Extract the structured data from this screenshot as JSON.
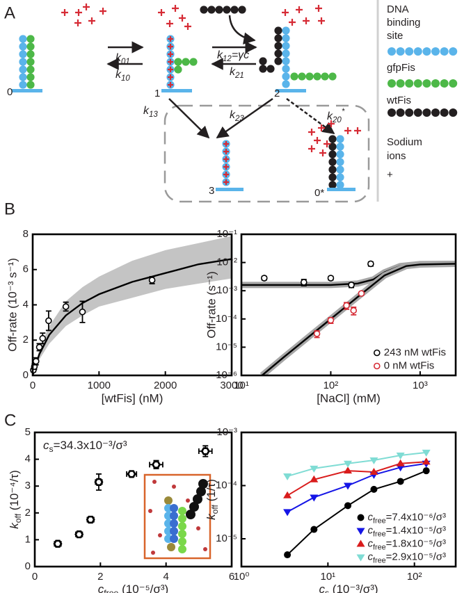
{
  "panel_labels": [
    "A",
    "B",
    "C"
  ],
  "diagram": {
    "states": [
      "0",
      "1",
      "2",
      "3",
      "0*"
    ],
    "rates": [
      {
        "symbol": "k",
        "subscript": "01"
      },
      {
        "symbol": "k",
        "subscript": "10"
      },
      {
        "symbol": "k",
        "subscript": "12",
        "text": "=γc"
      },
      {
        "symbol": "k",
        "subscript": "21"
      },
      {
        "symbol": "k",
        "subscript": "13"
      },
      {
        "symbol": "k",
        "subscript": "23"
      },
      {
        "symbol": "k",
        "subscript": "20",
        "superscript": "*"
      }
    ],
    "legend": [
      {
        "lines": [
          "DNA",
          "binding",
          "site"
        ],
        "color": "#5ab4ea"
      },
      {
        "lines": [
          "gfpFis"
        ],
        "color": "#4db848"
      },
      {
        "lines": [
          "wtFis"
        ],
        "color": "#231f20"
      },
      {
        "lines": [
          "Sodium",
          "ions"
        ],
        "color": "#d62b35",
        "symbol": "+"
      }
    ]
  },
  "chart_data": [
    {
      "type": "scatter",
      "xlabel": "[wtFis] (nM)",
      "ylabel": "Off-rate (10⁻³ s⁻¹)",
      "xlim": [
        0,
        3000
      ],
      "xticks": [
        0,
        1000,
        2000,
        3000
      ],
      "ylim": [
        0,
        8
      ],
      "yticks": [
        0,
        2,
        4,
        6,
        8
      ],
      "band": {
        "color": "#c4c4c4",
        "x": [
          0,
          100,
          250,
          500,
          750,
          1000,
          1500,
          2000,
          2500,
          3000
        ],
        "lower": [
          0,
          0.9,
          1.8,
          2.8,
          3.4,
          3.9,
          4.4,
          4.9,
          5.2,
          5.5
        ],
        "upper": [
          0,
          1.5,
          2.8,
          4.2,
          5.0,
          5.6,
          6.5,
          7.1,
          7.5,
          7.9
        ]
      },
      "fits": [
        {
          "color": "#000000",
          "x": [
            0,
            100,
            250,
            500,
            750,
            1000,
            1500,
            2000,
            2500,
            3000
          ],
          "values": [
            0,
            1.2,
            2.3,
            3.4,
            4.1,
            4.6,
            5.3,
            5.8,
            6.3,
            6.6
          ]
        }
      ],
      "series": [
        {
          "color": "#000000",
          "marker": "open-circle",
          "x": [
            10,
            25,
            50,
            100,
            150,
            240,
            500,
            750,
            1800
          ],
          "values": [
            0.3,
            0.5,
            0.8,
            1.6,
            2.1,
            3.1,
            3.9,
            3.6,
            5.4
          ],
          "errors": [
            0.1,
            0.15,
            0.2,
            0.2,
            0.3,
            0.55,
            0.25,
            0.6,
            0.2
          ]
        }
      ]
    },
    {
      "type": "scatter",
      "xlabel": "[NaCl] (mM)",
      "ylabel": "Off-rate (s⁻¹)",
      "xscale": "log",
      "yscale": "log",
      "xlim": [
        10,
        2500
      ],
      "xticks": [
        {
          "value": 10,
          "label": "10¹"
        },
        {
          "value": 100,
          "label": "10²"
        },
        {
          "value": 1000,
          "label": "10³"
        }
      ],
      "ylim": [
        1e-06,
        0.1
      ],
      "yticks": [
        {
          "value": 1e-06,
          "label": "10⁻⁶"
        },
        {
          "value": 1e-05,
          "label": "10⁻⁵"
        },
        {
          "value": 0.0001,
          "label": "10⁻⁴"
        },
        {
          "value": 0.001,
          "label": "10⁻³"
        },
        {
          "value": 0.01,
          "label": "10⁻²"
        },
        {
          "value": 0.1,
          "label": "10⁻¹"
        }
      ],
      "legend": "lower right",
      "fits": [
        {
          "color": "#000000",
          "halo_color": "#a6a6a6",
          "x": [
            10,
            100,
            200,
            300,
            400,
            600,
            1000,
            2500
          ],
          "values": [
            0.0016,
            0.0016,
            0.0018,
            0.0025,
            0.0045,
            0.0075,
            0.0088,
            0.009
          ]
        },
        {
          "color": "#000000",
          "halo_color": "#a6a6a6",
          "x": [
            17,
            30,
            60,
            100,
            200,
            400,
            700,
            1000,
            2500
          ],
          "values": [
            1e-06,
            4.5e-06,
            2.7e-05,
            0.0001,
            0.0006,
            0.0035,
            0.0075,
            0.0085,
            0.009
          ]
        }
      ],
      "series": [
        {
          "name": "243 nM wtFis",
          "color": "#000000",
          "marker": "open-circle",
          "x": [
            18,
            50,
            100,
            170,
            280
          ],
          "values": [
            0.0028,
            0.002,
            0.0028,
            0.0016,
            0.009
          ],
          "errors": [
            0.0004,
            0.0005,
            0.0004,
            0.0003,
            0.0015
          ]
        },
        {
          "name": "0 nM wtFis",
          "color": "#d62b35",
          "marker": "open-circle",
          "x": [
            70,
            100,
            150,
            180,
            220
          ],
          "values": [
            3e-05,
            9e-05,
            0.0003,
            0.0002,
            0.0008
          ],
          "errors": [
            8e-06,
            2e-05,
            8e-05,
            6e-05,
            0.0001
          ]
        }
      ]
    },
    {
      "type": "scatter",
      "xlabel": {
        "symbol": "c",
        "subscript": "free",
        "text": " (10⁻⁵/σ³)"
      },
      "ylabel": {
        "symbol": "k",
        "subscript": "off",
        "text": " (10⁻⁴/τ)"
      },
      "annotation": {
        "symbol": "c",
        "subscript": "s",
        "text": "=34.3x10⁻³/σ³"
      },
      "xlim": [
        0,
        6
      ],
      "xticks": [
        0,
        2,
        4,
        6
      ],
      "ylim": [
        0,
        5
      ],
      "yticks": [
        0,
        1,
        2,
        3,
        4,
        5
      ],
      "series": [
        {
          "color": "#000000",
          "marker": "open-hexagon",
          "x": [
            0.7,
            1.35,
            1.7,
            1.95,
            2.95,
            3.7,
            5.2
          ],
          "values": [
            0.85,
            1.2,
            1.75,
            3.15,
            3.45,
            3.8,
            4.3
          ],
          "errors": [
            0.05,
            0.08,
            0.1,
            0.3,
            0.1,
            0.15,
            0.2
          ],
          "xerrors": [
            0.1,
            0.1,
            0.1,
            0.1,
            0.15,
            0.2,
            0.2
          ]
        }
      ]
    },
    {
      "type": "scatter",
      "xlabel": {
        "symbol": "c",
        "subscript": "s",
        "text": " (10⁻³/σ³)"
      },
      "ylabel": {
        "symbol": "k",
        "subscript": "off",
        "text": " (1/τ)"
      },
      "xscale": "log",
      "yscale": "log",
      "xlim": [
        1,
        300
      ],
      "xticks": [
        {
          "value": 1,
          "label": "10⁰"
        },
        {
          "value": 10,
          "label": "10¹"
        },
        {
          "value": 100,
          "label": "10²"
        }
      ],
      "ylim": [
        3e-06,
        0.001
      ],
      "yticks": [
        {
          "value": 1e-05,
          "label": "10⁻⁵"
        },
        {
          "value": 0.0001,
          "label": "10⁻⁴"
        },
        {
          "value": 0.001,
          "label": "10⁻³"
        }
      ],
      "legend": "lower right",
      "series": [
        {
          "name": {
            "symbol": "c",
            "subscript": "free",
            "text": "=7.4x10⁻⁶/σ³"
          },
          "color": "#000000",
          "marker": "circle",
          "connect": true,
          "x": [
            3.4,
            6.9,
            17,
            34,
            69,
            137
          ],
          "values": [
            5e-06,
            1.5e-05,
            4.2e-05,
            8.5e-05,
            0.00012,
            0.00019
          ]
        },
        {
          "name": {
            "symbol": "c",
            "subscript": "free",
            "text": "=1.4x10⁻⁵/σ³"
          },
          "color": "#1515e6",
          "marker": "triangle-down",
          "connect": true,
          "x": [
            3.4,
            6.9,
            17,
            34,
            69,
            137
          ],
          "values": [
            3.2e-05,
            6e-05,
            0.0001,
            0.00016,
            0.00022,
            0.00026
          ]
        },
        {
          "name": {
            "symbol": "c",
            "subscript": "free",
            "text": "=1.8x10⁻⁵/σ³"
          },
          "color": "#d91c1c",
          "marker": "triangle-up",
          "connect": true,
          "x": [
            3.4,
            6.9,
            17,
            34,
            69,
            137
          ],
          "values": [
            6.5e-05,
            0.00013,
            0.00019,
            0.00018,
            0.00026,
            0.00028
          ]
        },
        {
          "name": {
            "symbol": "c",
            "subscript": "free",
            "text": "=2.9x10⁻⁵/σ³"
          },
          "color": "#7fdcd4",
          "marker": "triangle-down",
          "connect": true,
          "x": [
            3.4,
            6.9,
            17,
            34,
            69,
            137
          ],
          "values": [
            0.00015,
            0.00021,
            0.00026,
            0.0003,
            0.00037,
            0.00042
          ]
        }
      ]
    }
  ]
}
